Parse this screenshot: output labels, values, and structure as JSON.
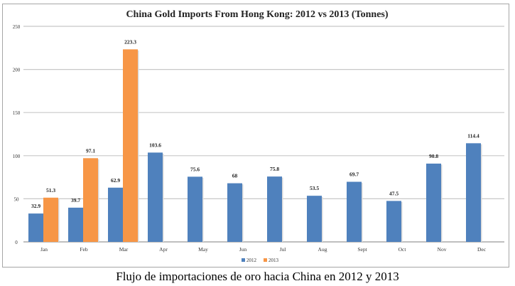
{
  "chart_data": {
    "type": "bar",
    "title": "China Gold Imports From Hong Kong: 2012 vs 2013 (Tonnes)",
    "xlabel": "",
    "ylabel": "",
    "ylim": [
      0,
      250
    ],
    "yticks": [
      0,
      50,
      100,
      150,
      200,
      250
    ],
    "grid": true,
    "legend_position": "bottom",
    "categories": [
      "Jan",
      "Feb",
      "Mar",
      "Apr",
      "May",
      "Jun",
      "Jul",
      "Aug",
      "Sept",
      "Oct",
      "Nov",
      "Dec"
    ],
    "series": [
      {
        "name": "2012",
        "color": "#4f81bd",
        "values": [
          32.9,
          39.7,
          62.9,
          103.6,
          75.6,
          68,
          75.8,
          53.5,
          69.7,
          47.5,
          90.8,
          114.4
        ],
        "labels": [
          "32.9",
          "39.7",
          "62.9",
          "103.6",
          "75.6",
          "68",
          "75.8",
          "53.5",
          "69.7",
          "47.5",
          "90.8",
          "114.4"
        ]
      },
      {
        "name": "2013",
        "color": "#f79646",
        "values": [
          51.3,
          97.1,
          223.3,
          null,
          null,
          null,
          null,
          null,
          null,
          null,
          null,
          null
        ],
        "labels": [
          "51.3",
          "97.1",
          "223.3",
          null,
          null,
          null,
          null,
          null,
          null,
          null,
          null,
          null
        ]
      }
    ]
  },
  "caption": "Flujo de importaciones de oro hacia China en 2012 y 2013"
}
